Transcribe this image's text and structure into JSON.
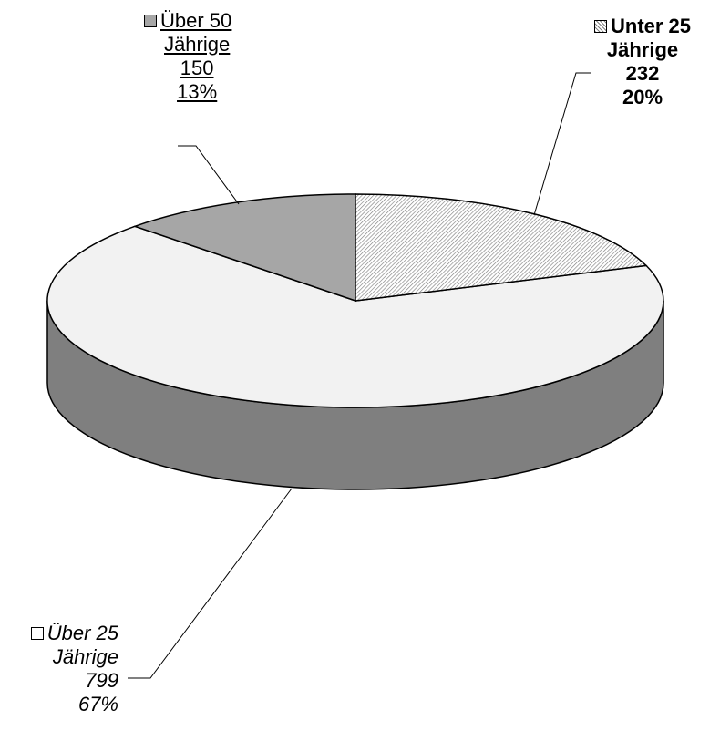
{
  "chart_data": {
    "type": "pie",
    "style": "3d",
    "categories": [
      "Unter 25 Jährige",
      "Über 25 Jährige",
      "Über 50 Jährige"
    ],
    "values": [
      232,
      799,
      150
    ],
    "percentages": [
      "20%",
      "67%",
      "13%"
    ],
    "labels": {
      "u25": {
        "name_line1": "Unter 25",
        "name_line2": "Jährige",
        "value": "232",
        "percent": "20%"
      },
      "o50": {
        "name_line1": "Über 50",
        "name_line2": "Jährige",
        "value": "150",
        "percent": "13%"
      },
      "o25": {
        "name_line1": "Über 25",
        "name_line2": "Jährige",
        "value": "799",
        "percent": "67%"
      }
    },
    "colors": {
      "u25": "#ffffff",
      "o25": "#f2f2f2",
      "o50": "#a6a6a6",
      "side": "#7f7f7f",
      "hatch": "#808080"
    }
  }
}
